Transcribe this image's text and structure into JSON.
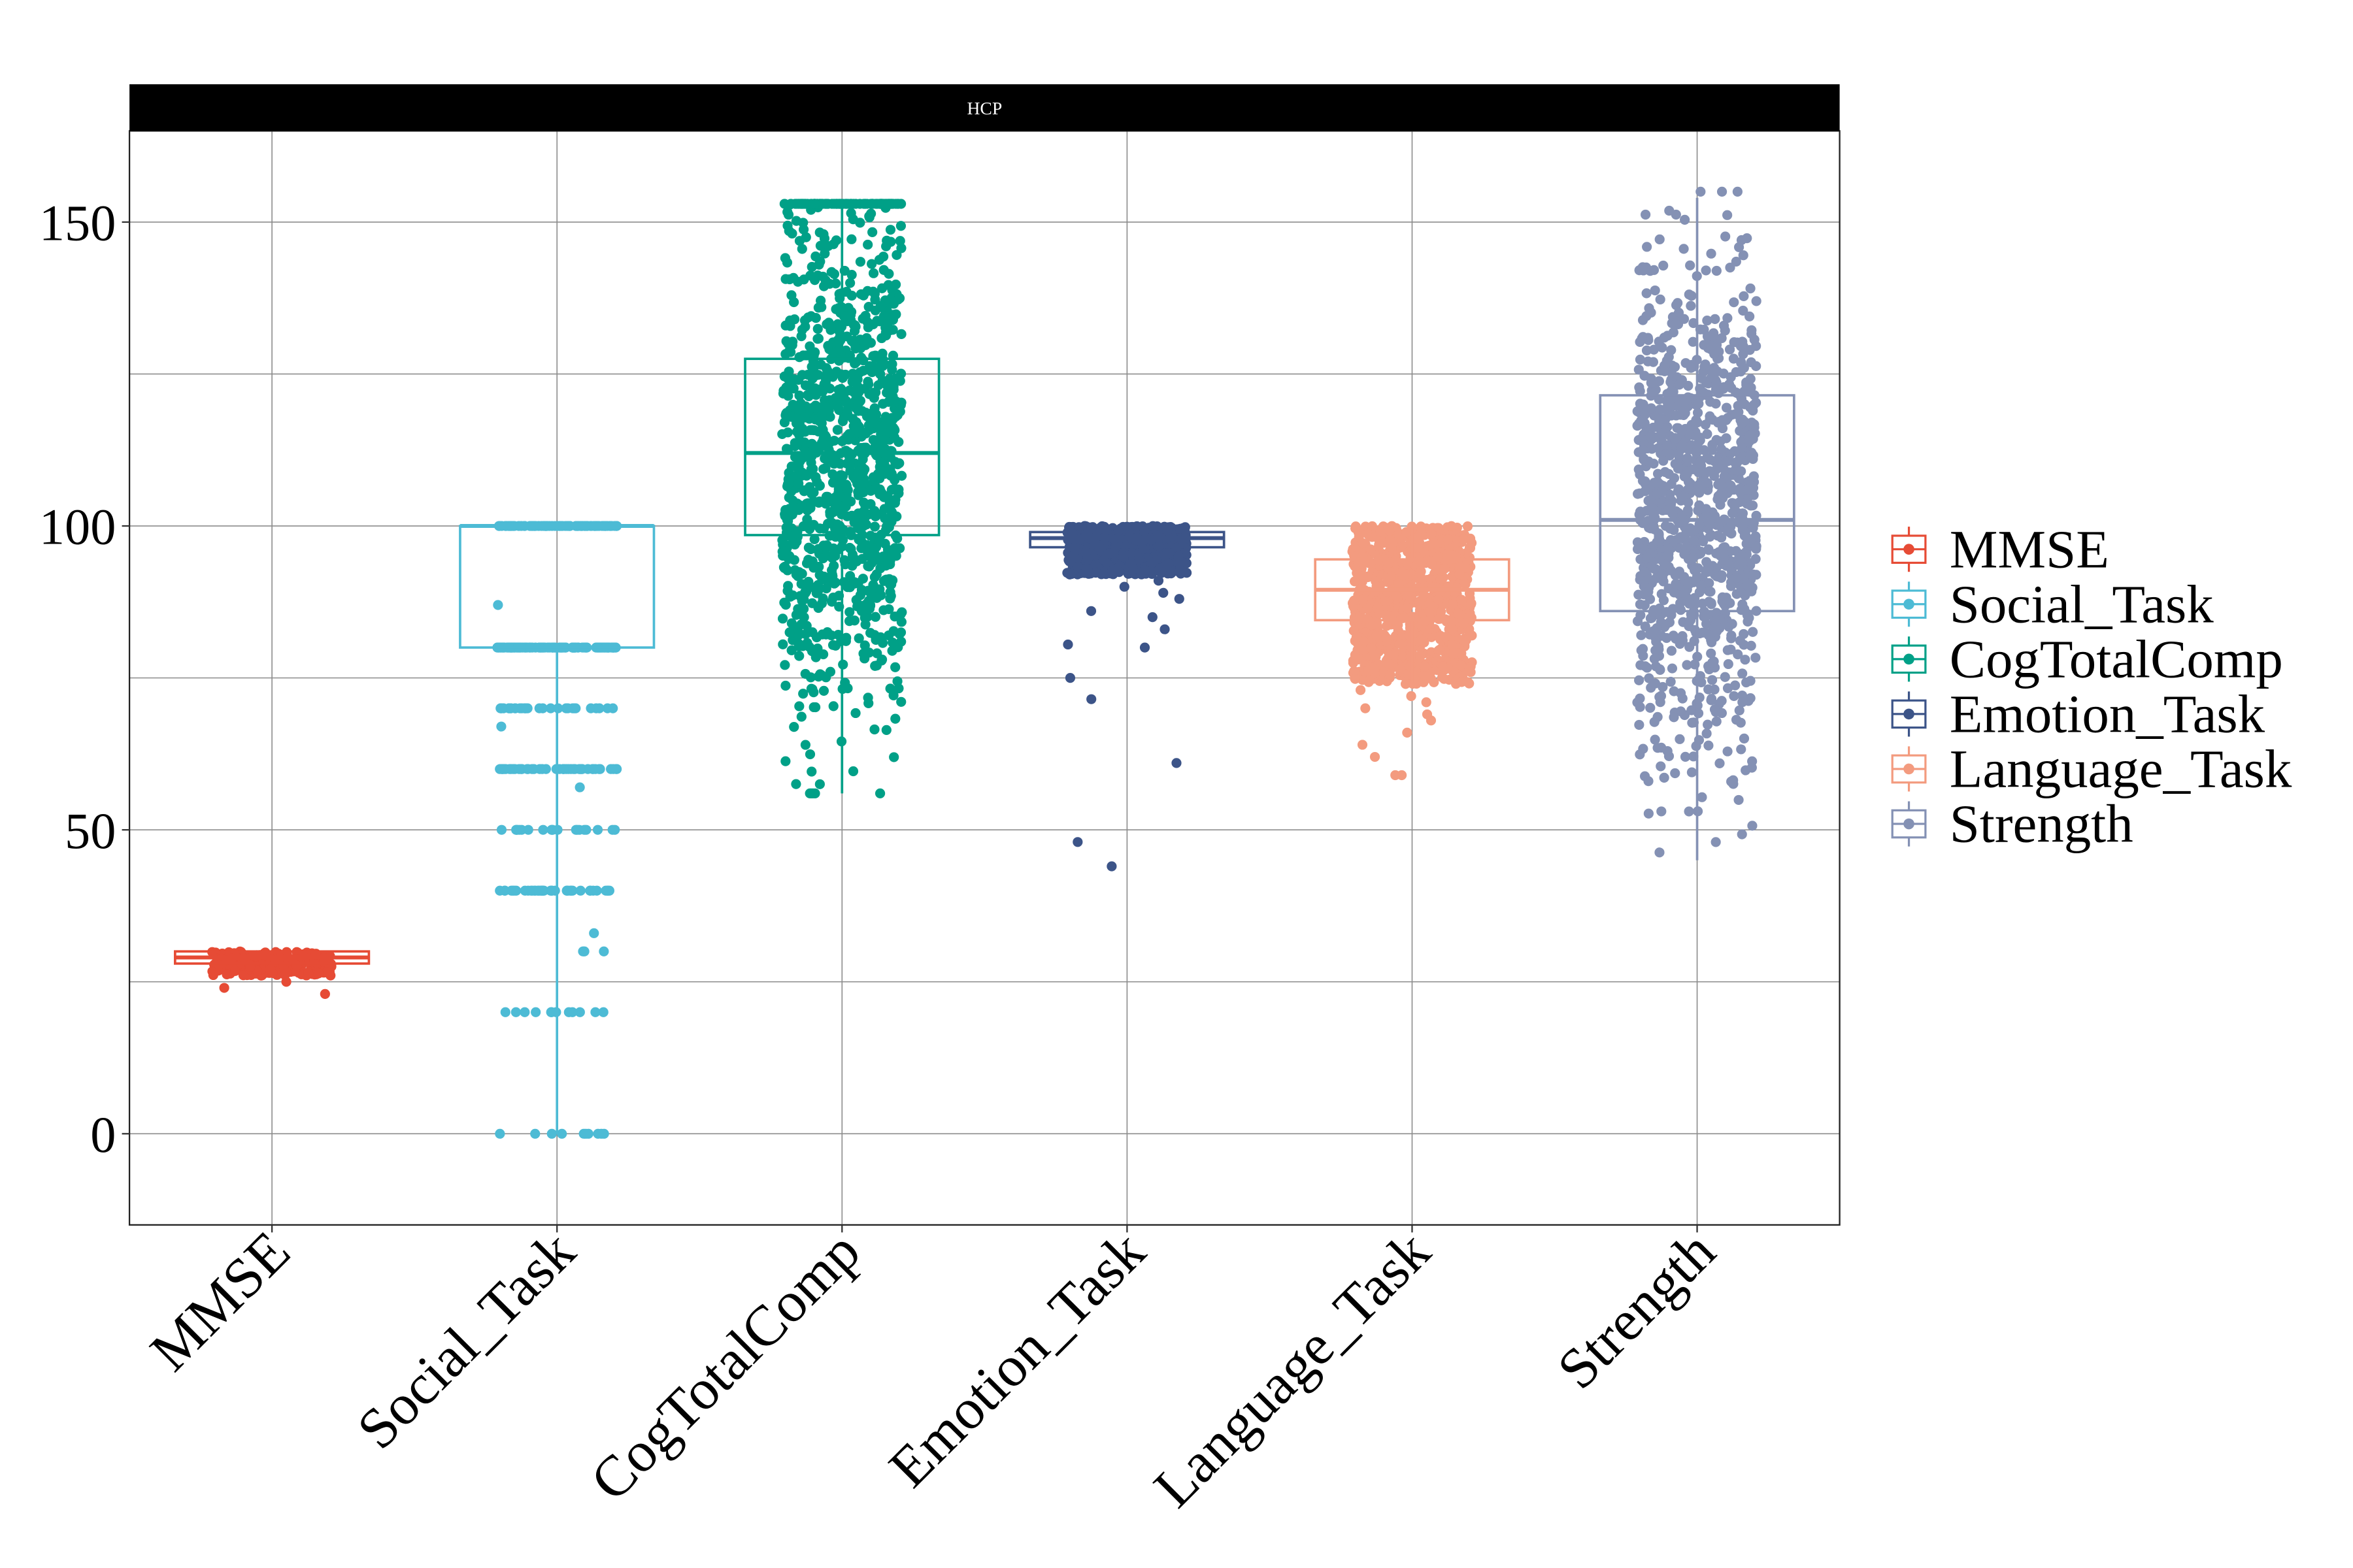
{
  "chart_data": {
    "type": "box",
    "panel_title": "HCP",
    "title": "",
    "xlabel": "",
    "ylabel": "",
    "ylim": [
      -15,
      165
    ],
    "y_ticks": [
      0,
      50,
      100,
      150
    ],
    "grid": true,
    "legend_position": "right",
    "categories": [
      "MMSE",
      "Social_Task",
      "CogTotalComp",
      "Emotion_Task",
      "Language_Task",
      "Strength"
    ],
    "colors": {
      "MMSE": "#E64B35",
      "Social_Task": "#4DBBD5",
      "CogTotalComp": "#00A087",
      "Emotion_Task": "#3C5488",
      "Language_Task": "#F39B7F",
      "Strength": "#8491B4"
    },
    "series": [
      {
        "name": "MMSE",
        "min": 26,
        "q1": 28,
        "median": 29,
        "q3": 30,
        "max": 30,
        "outliers": [
          24,
          23,
          25
        ],
        "points": {
          "mode": "uniform",
          "lo": 26,
          "hi": 30,
          "n": 220
        }
      },
      {
        "name": "Social_Task",
        "min": 0,
        "q1": 80,
        "median": 100,
        "q3": 100,
        "max": 100,
        "outliers": [
          87,
          67,
          57,
          33,
          30,
          30,
          30
        ],
        "points": {
          "mode": "levels",
          "levels": [
            [
              100,
              90
            ],
            [
              80,
              90
            ],
            [
              70,
              30
            ],
            [
              60,
              45
            ],
            [
              50,
              20
            ],
            [
              40,
              40
            ],
            [
              20,
              12
            ],
            [
              0,
              10
            ]
          ]
        }
      },
      {
        "name": "CogTotalComp",
        "min": 56,
        "q1": 98.5,
        "median": 112,
        "q3": 127.5,
        "max": 153,
        "outliers": [],
        "points": {
          "mode": "normal",
          "mean": 112,
          "sd": 21,
          "lo": 56,
          "hi": 153,
          "n": 1100,
          "cap": 153,
          "cap_n": 60
        }
      },
      {
        "name": "Emotion_Task",
        "min": 92,
        "q1": 96.5,
        "median": 98,
        "q3": 99,
        "max": 100,
        "outliers": [
          91,
          90,
          89,
          88,
          86,
          85,
          83,
          80.5,
          80,
          75,
          71.5,
          61,
          48,
          44
        ],
        "points": {
          "mode": "uniform",
          "lo": 92,
          "hi": 100,
          "n": 700
        }
      },
      {
        "name": "Language_Task",
        "min": 74,
        "q1": 84.5,
        "median": 89.5,
        "q3": 94.5,
        "max": 100,
        "outliers": [
          73,
          72,
          71,
          70,
          69,
          68,
          66,
          64,
          62,
          59,
          59
        ],
        "points": {
          "mode": "uniform",
          "lo": 74,
          "hi": 100,
          "n": 900
        }
      },
      {
        "name": "Strength",
        "min": 45,
        "q1": 86,
        "median": 101,
        "q3": 121.5,
        "max": 154,
        "outliers": [],
        "points": {
          "mode": "normal",
          "mean": 103,
          "sd": 20,
          "lo": 45,
          "hi": 155,
          "n": 1100
        }
      }
    ]
  }
}
